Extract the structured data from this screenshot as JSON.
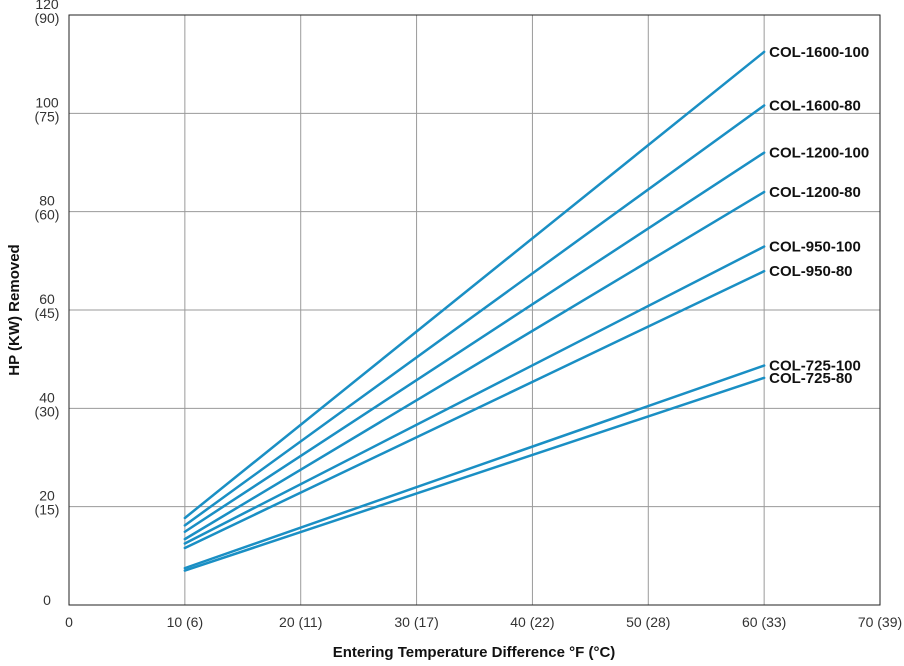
{
  "chart_data": {
    "type": "line",
    "xlabel": "Entering Temperature Difference °F (°C)",
    "ylabel": "HP (KW) Removed",
    "xlim": [
      0,
      70
    ],
    "ylim": [
      0,
      120
    ],
    "grid": true,
    "line_color": "#1a8fc4",
    "x_ticks": [
      {
        "value": 0,
        "label": "0"
      },
      {
        "value": 10,
        "label": "10 (6)"
      },
      {
        "value": 20,
        "label": "20 (11)"
      },
      {
        "value": 30,
        "label": "30 (17)"
      },
      {
        "value": 40,
        "label": "40 (22)"
      },
      {
        "value": 50,
        "label": "50 (28)"
      },
      {
        "value": 60,
        "label": "60 (33)"
      },
      {
        "value": 70,
        "label": "70 (39)"
      }
    ],
    "y_ticks": [
      {
        "value": 0,
        "label": "0",
        "sub": ""
      },
      {
        "value": 20,
        "label": "20",
        "sub": "(15)"
      },
      {
        "value": 40,
        "label": "40",
        "sub": "(30)"
      },
      {
        "value": 60,
        "label": "60",
        "sub": "(45)"
      },
      {
        "value": 80,
        "label": "80",
        "sub": "(60)"
      },
      {
        "value": 100,
        "label": "100",
        "sub": "(75)"
      },
      {
        "value": 120,
        "label": "120",
        "sub": "(90)"
      }
    ],
    "series": [
      {
        "name": "COL-1600-100",
        "x": [
          10,
          60
        ],
        "y": [
          17.7,
          112.5
        ]
      },
      {
        "name": "COL-1600-80",
        "x": [
          10,
          60
        ],
        "y": [
          16.2,
          101.6
        ]
      },
      {
        "name": "COL-1200-100",
        "x": [
          10,
          60
        ],
        "y": [
          14.9,
          92.0
        ]
      },
      {
        "name": "COL-1200-80",
        "x": [
          10,
          60
        ],
        "y": [
          13.4,
          84.0
        ]
      },
      {
        "name": "COL-950-100",
        "x": [
          10,
          60
        ],
        "y": [
          12.5,
          72.9
        ]
      },
      {
        "name": "COL-950-80",
        "x": [
          10,
          60
        ],
        "y": [
          11.6,
          67.9
        ]
      },
      {
        "name": "COL-725-100",
        "x": [
          10,
          60
        ],
        "y": [
          7.5,
          48.7
        ]
      },
      {
        "name": "COL-725-80",
        "x": [
          10,
          60
        ],
        "y": [
          7.0,
          46.2
        ]
      }
    ]
  }
}
